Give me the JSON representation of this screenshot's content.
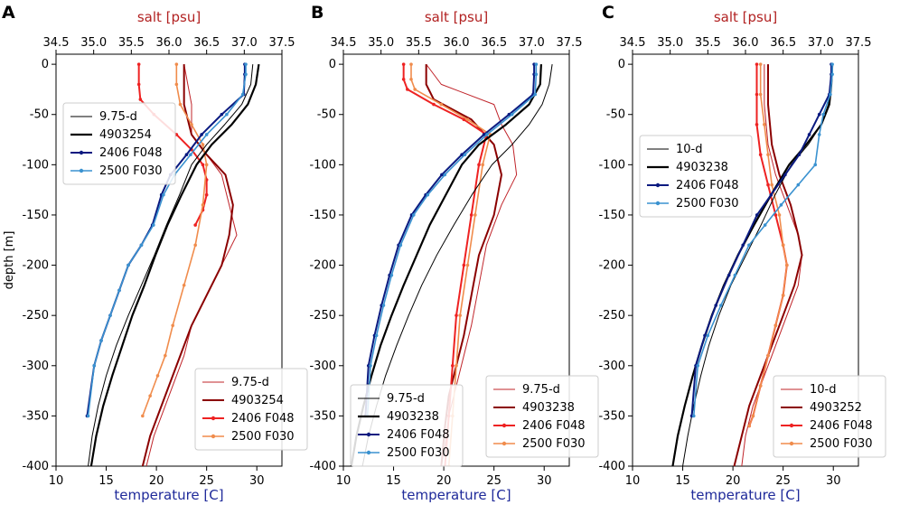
{
  "figure": {
    "ylabel": "depth [m]",
    "xlabel_bottom": "temperature [C]",
    "xlabel_top": "salt [psu]",
    "colors": {
      "temp_model": "#000000",
      "temp_argo": "#000000",
      "temp_f048": "#0a1a80",
      "temp_f030": "#3a92d0",
      "salt_model": "#c0242a",
      "salt_argo": "#8b0000",
      "salt_f048": "#ee2222",
      "salt_f030": "#f08c4c",
      "axis_temp": "#1f2a9a",
      "axis_salt": "#b22222"
    }
  },
  "chart_data": [
    {
      "type": "line",
      "panel": "A",
      "title": "",
      "xlabel": "temperature [C]",
      "x2label": "salt [psu]",
      "ylabel": "depth [m]",
      "xlim": [
        10,
        32.5
      ],
      "x2lim": [
        34.5,
        37.5
      ],
      "ylim": [
        -400,
        10
      ],
      "xticks": [
        10,
        15,
        20,
        25,
        30
      ],
      "x2ticks": [
        34.5,
        35.0,
        35.5,
        36.0,
        36.5,
        37.0,
        37.5
      ],
      "yticks": [
        0,
        -50,
        -100,
        -150,
        -200,
        -250,
        -300,
        -350,
        -400
      ],
      "legend_temp": [
        "9.75-d",
        "4903254",
        "2406 F048",
        "2500 F030"
      ],
      "legend_salt": [
        "9.75-d",
        "4903254",
        "2406 F048",
        "2500 F030"
      ],
      "temperature": [
        {
          "name": "9.75-d",
          "x": [
            29.6,
            29.4,
            28.5,
            26.8,
            25.0,
            23.5,
            22.3,
            21.0,
            19.8,
            18.5,
            17.2,
            16.0,
            15.0,
            14.2,
            13.6,
            13.2
          ],
          "y": [
            0,
            -20,
            -40,
            -60,
            -80,
            -100,
            -130,
            -160,
            -190,
            -220,
            -250,
            -280,
            -310,
            -340,
            -370,
            -400
          ]
        },
        {
          "name": "4903254",
          "x": [
            30.2,
            29.9,
            29.1,
            27.5,
            25.5,
            24.0,
            22.5,
            21.1,
            19.9,
            18.8,
            17.6,
            16.6,
            15.6,
            14.7,
            14.0,
            13.5
          ],
          "y": [
            0,
            -20,
            -40,
            -60,
            -80,
            -100,
            -130,
            -160,
            -190,
            -220,
            -250,
            -280,
            -310,
            -340,
            -370,
            -400
          ]
        },
        {
          "name": "2406 F048",
          "x": [
            28.8,
            28.8,
            28.7,
            26.5,
            24.5,
            23.0,
            21.4,
            20.5,
            19.6,
            18.5,
            17.2,
            16.3,
            15.4,
            14.5,
            13.8,
            13.1
          ],
          "y": [
            0,
            -10,
            -30,
            -50,
            -70,
            -90,
            -110,
            -130,
            -160,
            -180,
            -200,
            -225,
            -250,
            -275,
            -300,
            -350
          ]
        },
        {
          "name": "2500 F030",
          "x": [
            28.9,
            28.9,
            28.6,
            27.0,
            25.0,
            23.4,
            21.8,
            20.7,
            19.7,
            18.5,
            17.2,
            16.3,
            15.4,
            14.5,
            13.8,
            13.2
          ],
          "y": [
            0,
            -10,
            -30,
            -50,
            -70,
            -90,
            -110,
            -130,
            -160,
            -180,
            -200,
            -225,
            -250,
            -275,
            -300,
            -350
          ]
        }
      ],
      "salinity": [
        {
          "name": "9.75-d",
          "x": [
            36.2,
            36.3,
            36.3,
            36.5,
            36.7,
            36.8,
            36.9,
            36.7,
            36.5,
            36.3,
            36.2,
            36.1,
            36.0,
            35.9,
            35.8,
            35.7
          ],
          "y": [
            0,
            -40,
            -70,
            -90,
            -110,
            -140,
            -170,
            -200,
            -230,
            -260,
            -290,
            -310,
            -330,
            -350,
            -370,
            -400
          ]
        },
        {
          "name": "4903254",
          "x": [
            36.2,
            36.2,
            36.3,
            36.5,
            36.75,
            36.85,
            36.8,
            36.7,
            36.5,
            36.3,
            36.15,
            36.05,
            35.95,
            35.85,
            35.75,
            35.65
          ],
          "y": [
            0,
            -40,
            -70,
            -90,
            -110,
            -140,
            -170,
            -200,
            -230,
            -260,
            -290,
            -310,
            -330,
            -350,
            -370,
            -400
          ]
        },
        {
          "name": "2406 F048",
          "x": [
            35.6,
            35.6,
            35.62,
            35.8,
            36.1,
            36.3,
            36.45,
            36.5,
            36.5,
            36.45,
            36.35
          ],
          "y": [
            0,
            -20,
            -35,
            -50,
            -70,
            -85,
            -100,
            -115,
            -130,
            -145,
            -160
          ]
        },
        {
          "name": "2500 F030",
          "x": [
            36.1,
            36.1,
            36.15,
            36.3,
            36.45,
            36.5,
            36.45,
            36.35,
            36.2,
            36.05,
            35.95,
            35.85,
            35.75,
            35.65
          ],
          "y": [
            0,
            -20,
            -40,
            -60,
            -80,
            -100,
            -140,
            -180,
            -220,
            -260,
            -290,
            -310,
            -330,
            -350
          ]
        }
      ]
    },
    {
      "type": "line",
      "panel": "B",
      "title": "",
      "xlabel": "temperature [C]",
      "x2label": "salt [psu]",
      "ylabel": "",
      "xlim": [
        10,
        32.5
      ],
      "x2lim": [
        34.5,
        37.5
      ],
      "ylim": [
        -400,
        10
      ],
      "xticks": [
        10,
        15,
        20,
        25,
        30
      ],
      "x2ticks": [
        34.5,
        35.0,
        35.5,
        36.0,
        36.5,
        37.0,
        37.5
      ],
      "yticks": [
        0,
        -50,
        -100,
        -150,
        -200,
        -250,
        -300,
        -350,
        -400
      ],
      "legend_temp": [
        "9.75-d",
        "4903238",
        "2406 F048",
        "2500 F030"
      ],
      "legend_salt": [
        "9.75-d",
        "4903238",
        "2406 F048",
        "2500 F030"
      ],
      "temperature": [
        {
          "name": "9.75-d",
          "x": [
            30.8,
            30.5,
            29.8,
            28.5,
            26.8,
            24.8,
            22.8,
            21.0,
            19.3,
            17.8,
            16.5,
            15.3,
            14.2,
            13.3,
            12.5,
            11.9
          ],
          "y": [
            0,
            -20,
            -40,
            -60,
            -80,
            -100,
            -130,
            -160,
            -190,
            -220,
            -250,
            -280,
            -310,
            -340,
            -370,
            -400
          ]
        },
        {
          "name": "4903238",
          "x": [
            29.7,
            29.6,
            28.5,
            26.2,
            23.5,
            21.8,
            20.2,
            18.6,
            17.3,
            16.0,
            14.8,
            13.7,
            12.8,
            12.0,
            11.3,
            10.8
          ],
          "y": [
            0,
            -20,
            -40,
            -60,
            -80,
            -100,
            -130,
            -160,
            -190,
            -220,
            -250,
            -280,
            -310,
            -340,
            -370,
            -400
          ]
        },
        {
          "name": "2406 F048",
          "x": [
            29.0,
            29.0,
            28.9,
            26.5,
            24.0,
            21.8,
            19.8,
            18.2,
            16.8,
            15.5,
            14.6,
            13.8,
            13.1,
            12.5,
            12.2
          ],
          "y": [
            0,
            -10,
            -30,
            -50,
            -70,
            -90,
            -110,
            -130,
            -150,
            -180,
            -210,
            -240,
            -270,
            -300,
            -350
          ]
        },
        {
          "name": "2500 F030",
          "x": [
            29.2,
            29.2,
            29.1,
            26.8,
            24.3,
            22.1,
            20.1,
            18.4,
            17.0,
            15.7,
            14.8,
            14.0,
            13.3,
            12.7,
            12.4
          ],
          "y": [
            0,
            -10,
            -30,
            -50,
            -70,
            -90,
            -110,
            -130,
            -150,
            -180,
            -210,
            -240,
            -270,
            -300,
            -350
          ]
        }
      ],
      "salinity": [
        {
          "name": "9.75-d",
          "x": [
            35.6,
            35.8,
            36.5,
            36.6,
            36.75,
            36.8,
            36.6,
            36.4,
            36.3,
            36.2,
            36.1,
            36.0,
            35.9,
            35.85,
            35.8
          ],
          "y": [
            0,
            -20,
            -40,
            -60,
            -80,
            -110,
            -140,
            -180,
            -220,
            -260,
            -290,
            -320,
            -350,
            -380,
            -400
          ]
        },
        {
          "name": "4903238",
          "x": [
            35.6,
            35.6,
            35.7,
            36.2,
            36.5,
            36.6,
            36.5,
            36.3,
            36.2,
            36.1,
            36.0,
            35.9,
            35.85,
            35.8
          ],
          "y": [
            0,
            -20,
            -35,
            -55,
            -80,
            -110,
            -150,
            -190,
            -230,
            -270,
            -300,
            -330,
            -360,
            -400
          ]
        },
        {
          "name": "2406 F048",
          "x": [
            35.3,
            35.3,
            35.35,
            35.7,
            36.1,
            36.4,
            36.3,
            36.2,
            36.1,
            36.0,
            35.95,
            35.9,
            35.85
          ],
          "y": [
            0,
            -15,
            -25,
            -40,
            -55,
            -70,
            -100,
            -150,
            -200,
            -250,
            -300,
            -350,
            -400
          ]
        },
        {
          "name": "2500 F030",
          "x": [
            35.4,
            35.4,
            35.45,
            35.8,
            36.15,
            36.45,
            36.35,
            36.25,
            36.15,
            36.05,
            36.0,
            35.95,
            35.9
          ],
          "y": [
            0,
            -15,
            -25,
            -40,
            -55,
            -70,
            -100,
            -150,
            -200,
            -250,
            -300,
            -350,
            -400
          ]
        }
      ]
    },
    {
      "type": "line",
      "panel": "C",
      "title": "",
      "xlabel": "temperature [C]",
      "x2label": "salt [psu]",
      "ylabel": "",
      "xlim": [
        10,
        32.5
      ],
      "x2lim": [
        34.5,
        37.5
      ],
      "ylim": [
        -400,
        10
      ],
      "xticks": [
        10,
        15,
        20,
        25,
        30
      ],
      "x2ticks": [
        34.5,
        35.0,
        35.5,
        36.0,
        36.5,
        37.0,
        37.5
      ],
      "yticks": [
        0,
        -50,
        -100,
        -150,
        -200,
        -250,
        -300,
        -350,
        -400
      ],
      "legend_temp": [
        "10-d",
        "4903238",
        "2406 F048",
        "2500 F030"
      ],
      "legend_salt": [
        "10-d",
        "4903252",
        "2406 F048",
        "2500 F030"
      ],
      "temperature": [
        {
          "name": "10-d",
          "x": [
            29.8,
            29.7,
            29.5,
            28.8,
            27.5,
            25.8,
            24.2,
            22.8,
            21.3,
            19.8,
            18.6,
            17.6,
            16.8,
            16.1,
            15.5,
            15.0
          ],
          "y": [
            0,
            -20,
            -40,
            -60,
            -80,
            -100,
            -130,
            -160,
            -190,
            -220,
            -250,
            -280,
            -310,
            -340,
            -370,
            -400
          ]
        },
        {
          "name": "4903238",
          "x": [
            29.9,
            29.8,
            29.6,
            28.8,
            27.3,
            25.6,
            23.8,
            22.1,
            20.5,
            19.1,
            17.9,
            16.9,
            16.0,
            15.2,
            14.5,
            14.0
          ],
          "y": [
            0,
            -20,
            -40,
            -60,
            -80,
            -100,
            -130,
            -160,
            -190,
            -220,
            -250,
            -280,
            -310,
            -340,
            -370,
            -400
          ]
        },
        {
          "name": "2406 F048",
          "x": [
            29.8,
            29.8,
            29.6,
            28.6,
            27.6,
            26.6,
            25.2,
            23.8,
            22.4,
            21.0,
            19.6,
            18.3,
            17.2,
            16.3,
            15.9
          ],
          "y": [
            0,
            -10,
            -30,
            -50,
            -70,
            -90,
            -110,
            -130,
            -150,
            -180,
            -210,
            -240,
            -270,
            -300,
            -350
          ]
        },
        {
          "name": "2500 F030",
          "x": [
            29.9,
            29.9,
            29.7,
            29.0,
            28.6,
            28.2,
            26.5,
            24.8,
            23.2,
            21.6,
            20.2,
            18.8,
            17.5,
            16.5,
            16.1
          ],
          "y": [
            0,
            -10,
            -30,
            -50,
            -70,
            -100,
            -120,
            -140,
            -160,
            -180,
            -210,
            -240,
            -270,
            -300,
            -350
          ]
        }
      ],
      "salinity": [
        {
          "name": "10-d",
          "x": [
            36.25,
            36.25,
            36.3,
            36.4,
            36.55,
            36.7,
            36.75,
            36.7,
            36.55,
            36.4,
            36.25,
            36.1,
            36.0,
            35.95
          ],
          "y": [
            0,
            -40,
            -80,
            -110,
            -140,
            -170,
            -190,
            -220,
            -250,
            -280,
            -310,
            -340,
            -370,
            -400
          ]
        },
        {
          "name": "4903252",
          "x": [
            36.3,
            36.3,
            36.35,
            36.45,
            36.6,
            36.7,
            36.75,
            36.65,
            36.5,
            36.35,
            36.2,
            36.05,
            35.95,
            35.85
          ],
          "y": [
            0,
            -40,
            -80,
            -110,
            -140,
            -170,
            -190,
            -220,
            -250,
            -280,
            -310,
            -340,
            -370,
            -400
          ]
        },
        {
          "name": "2406 F048",
          "x": [
            36.15,
            36.15,
            36.15,
            36.2,
            36.3,
            36.4,
            36.5,
            36.55,
            36.5,
            36.4,
            36.3,
            36.2,
            36.1,
            36.05
          ],
          "y": [
            0,
            -30,
            -60,
            -90,
            -120,
            -150,
            -180,
            -200,
            -230,
            -260,
            -290,
            -320,
            -350,
            -360
          ]
        },
        {
          "name": "2500 F030",
          "x": [
            36.2,
            36.2,
            36.25,
            36.3,
            36.35,
            36.45,
            36.5,
            36.55,
            36.5,
            36.4,
            36.3,
            36.2,
            36.1,
            36.05
          ],
          "y": [
            0,
            -30,
            -60,
            -90,
            -120,
            -150,
            -180,
            -200,
            -230,
            -260,
            -290,
            -320,
            -350,
            -360
          ]
        }
      ]
    }
  ]
}
